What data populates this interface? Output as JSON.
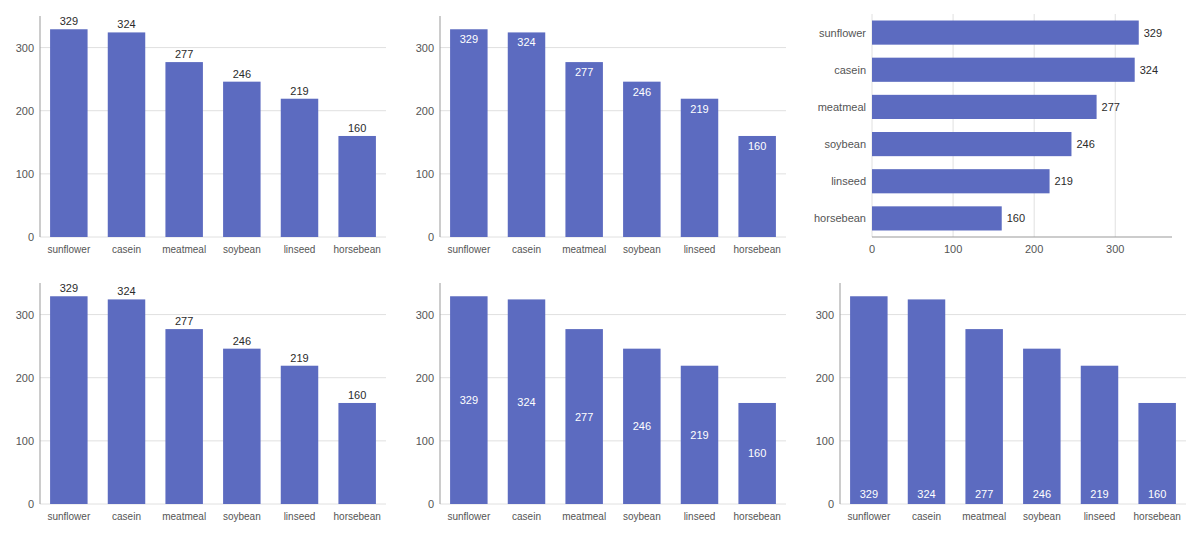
{
  "chart_data": [
    {
      "type": "bar",
      "categories": [
        "sunflower",
        "casein",
        "meatmeal",
        "soybean",
        "linseed",
        "horsebean"
      ],
      "values": [
        329,
        324,
        277,
        246,
        219,
        160
      ],
      "color": "#5c6bc0",
      "ylim": [
        0,
        350
      ],
      "yticks": [
        0,
        100,
        200,
        300
      ],
      "grid": true,
      "data_labels": true
    },
    {
      "type": "bar",
      "categories": [
        "sunflower",
        "casein",
        "meatmeal",
        "soybean",
        "linseed",
        "horsebean"
      ],
      "values": [
        329,
        324,
        277,
        246,
        219,
        160
      ],
      "color": "#5c6bc0",
      "ylim": [
        0,
        350
      ],
      "yticks": [
        0,
        100,
        200,
        300
      ],
      "grid": true,
      "data_labels": true
    },
    {
      "type": "bar",
      "orientation": "horizontal",
      "categories": [
        "horsebean",
        "linseed",
        "soybean",
        "meatmeal",
        "casein",
        "sunflower"
      ],
      "values": [
        160,
        219,
        246,
        277,
        324,
        329
      ],
      "color": "#5c6bc0",
      "xlim": [
        0,
        370
      ],
      "xticks": [
        0,
        100,
        200,
        300
      ],
      "grid": true,
      "data_labels": true
    },
    {
      "type": "bar",
      "categories": [
        "sunflower",
        "casein",
        "meatmeal",
        "soybean",
        "linseed",
        "horsebean"
      ],
      "values": [
        329,
        324,
        277,
        246,
        219,
        160
      ],
      "color": "#5c6bc0",
      "ylim": [
        0,
        350
      ],
      "yticks": [
        0,
        100,
        200,
        300
      ],
      "grid": true,
      "data_labels": true
    },
    {
      "type": "bar",
      "categories": [
        "sunflower",
        "casein",
        "meatmeal",
        "soybean",
        "linseed",
        "horsebean"
      ],
      "values": [
        329,
        324,
        277,
        246,
        219,
        160
      ],
      "color": "#5c6bc0",
      "ylim": [
        0,
        350
      ],
      "yticks": [
        0,
        100,
        200,
        300
      ],
      "grid": true,
      "data_labels": true
    },
    {
      "type": "bar",
      "categories": [
        "sunflower",
        "casein",
        "meatmeal",
        "soybean",
        "linseed",
        "horsebean"
      ],
      "values": [
        329,
        324,
        277,
        246,
        219,
        160
      ],
      "color": "#5c6bc0",
      "ylim": [
        0,
        350
      ],
      "yticks": [
        0,
        100,
        200,
        300
      ],
      "grid": true,
      "data_labels": true
    }
  ]
}
